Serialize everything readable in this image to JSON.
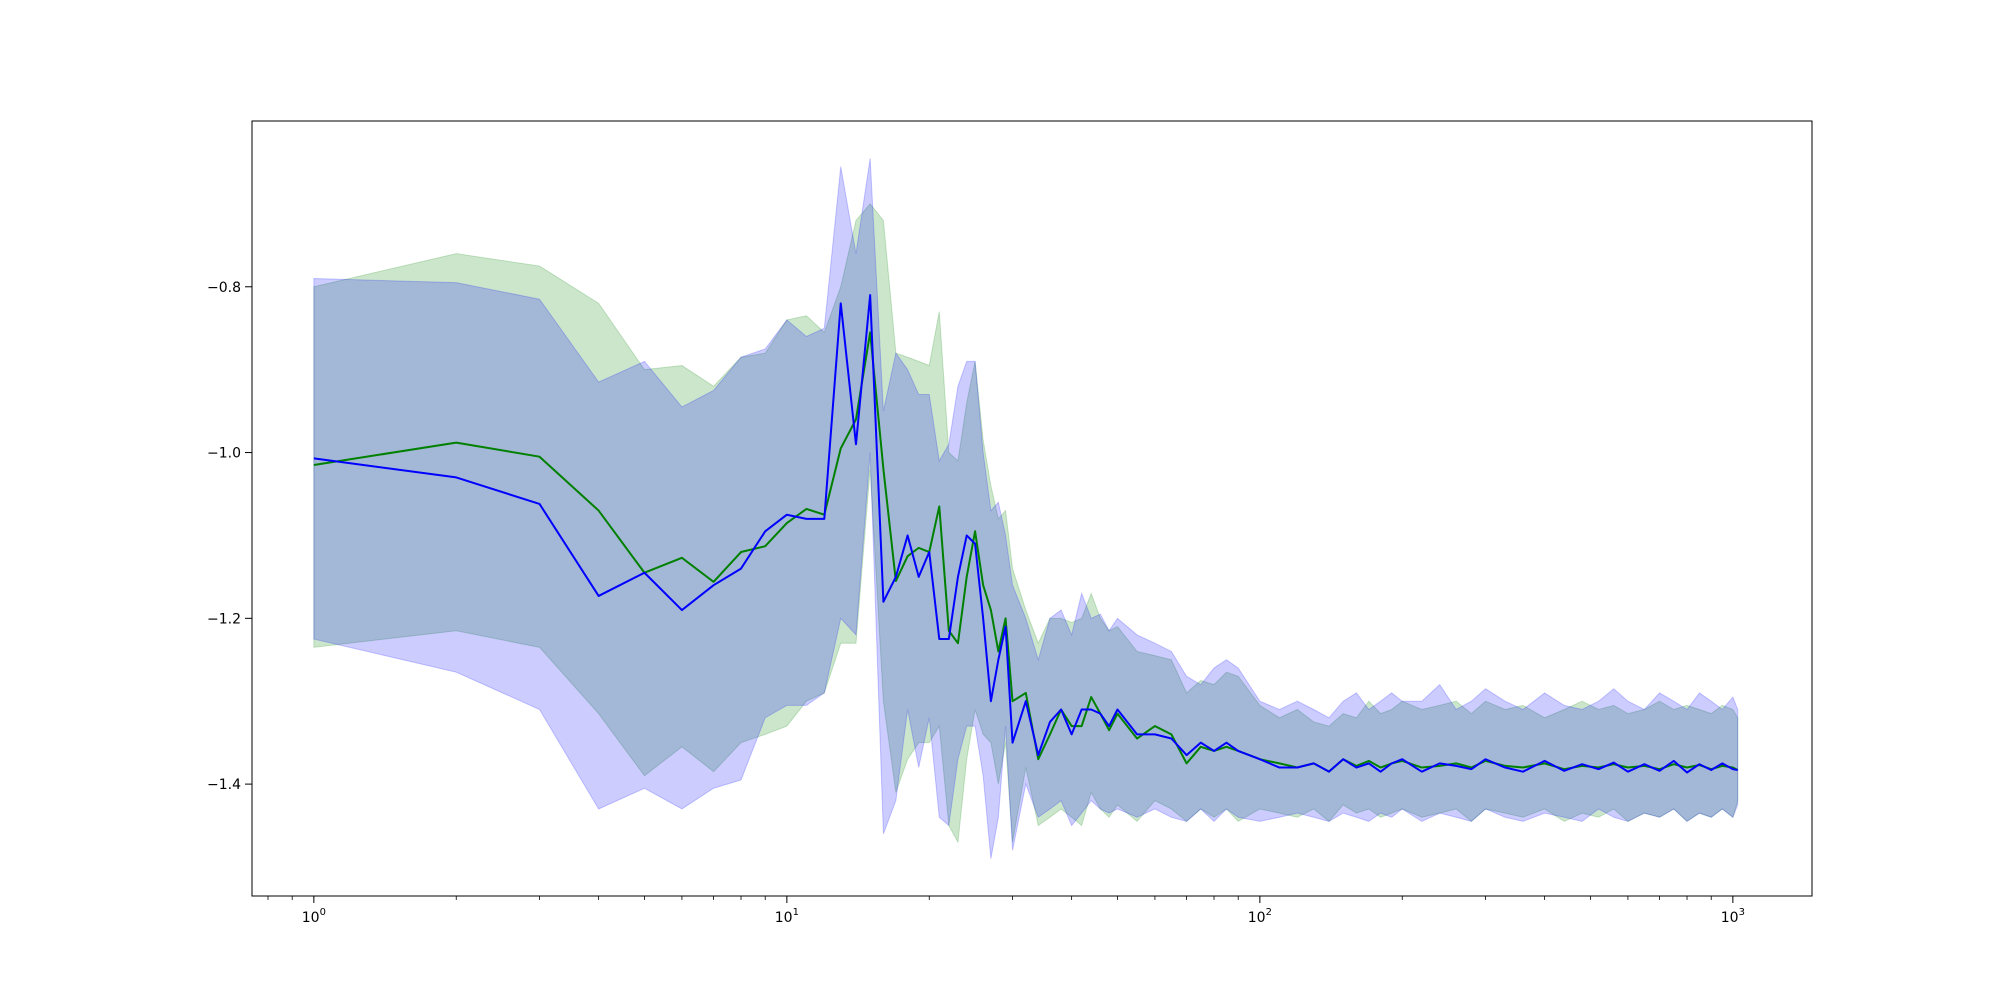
{
  "chart_data": {
    "type": "line",
    "title": "",
    "xlabel": "",
    "ylabel": "",
    "xscale": "log",
    "xlim": [
      0.74,
      1470
    ],
    "ylim": [
      -1.535,
      -0.6
    ],
    "grid": false,
    "legend": "none",
    "x_ticks": [
      {
        "value": 1,
        "base": "10",
        "exp": "0"
      },
      {
        "value": 10,
        "base": "10",
        "exp": "1"
      },
      {
        "value": 100,
        "base": "10",
        "exp": "2"
      },
      {
        "value": 1000,
        "base": "10",
        "exp": "3"
      }
    ],
    "y_ticks": [
      {
        "value": -0.8,
        "label": "−0.8"
      },
      {
        "value": -1.0,
        "label": "−1.0"
      },
      {
        "value": -1.2,
        "label": "−1.2"
      },
      {
        "value": -1.4,
        "label": "−1.4"
      }
    ],
    "series": [
      {
        "color": "#008000",
        "band_color": "#008000",
        "band_opacity": 0.2,
        "x": [
          1,
          2,
          3,
          4,
          5,
          6,
          7,
          8,
          9,
          10,
          11,
          12,
          13,
          14,
          15,
          16,
          17,
          18,
          19,
          20,
          21,
          22,
          23,
          24,
          25,
          26,
          27,
          28,
          29,
          30,
          32,
          34,
          36,
          38,
          40,
          42,
          44,
          46,
          48,
          50,
          55,
          60,
          65,
          70,
          75,
          80,
          85,
          90,
          100,
          110,
          120,
          130,
          140,
          150,
          160,
          170,
          180,
          190,
          200,
          220,
          240,
          260,
          280,
          300,
          330,
          360,
          400,
          440,
          480,
          520,
          560,
          600,
          650,
          700,
          750,
          800,
          850,
          900,
          950,
          1000,
          1024
        ],
        "mean": [
          -1.015,
          -0.988,
          -1.005,
          -1.07,
          -1.145,
          -1.127,
          -1.156,
          -1.12,
          -1.113,
          -1.085,
          -1.068,
          -1.075,
          -0.995,
          -0.96,
          -0.855,
          -1.02,
          -1.155,
          -1.125,
          -1.115,
          -1.12,
          -1.065,
          -1.215,
          -1.23,
          -1.15,
          -1.095,
          -1.16,
          -1.19,
          -1.24,
          -1.2,
          -1.3,
          -1.29,
          -1.37,
          -1.34,
          -1.31,
          -1.33,
          -1.33,
          -1.295,
          -1.315,
          -1.335,
          -1.315,
          -1.345,
          -1.33,
          -1.34,
          -1.375,
          -1.355,
          -1.36,
          -1.355,
          -1.36,
          -1.37,
          -1.375,
          -1.38,
          -1.375,
          -1.385,
          -1.37,
          -1.378,
          -1.372,
          -1.38,
          -1.375,
          -1.372,
          -1.38,
          -1.378,
          -1.375,
          -1.38,
          -1.372,
          -1.378,
          -1.38,
          -1.375,
          -1.382,
          -1.378,
          -1.38,
          -1.376,
          -1.38,
          -1.378,
          -1.382,
          -1.376,
          -1.38,
          -1.377,
          -1.382,
          -1.378,
          -1.38,
          -1.383
        ],
        "upper": [
          -0.8,
          -0.76,
          -0.775,
          -0.82,
          -0.9,
          -0.895,
          -0.92,
          -0.885,
          -0.88,
          -0.84,
          -0.835,
          -0.855,
          -0.8,
          -0.72,
          -0.7,
          -0.72,
          -0.88,
          -0.885,
          -0.89,
          -0.895,
          -0.83,
          -1.0,
          -1.01,
          -0.94,
          -0.89,
          -0.985,
          -1.04,
          -1.08,
          -1.07,
          -1.14,
          -1.19,
          -1.23,
          -1.2,
          -1.2,
          -1.205,
          -1.2,
          -1.17,
          -1.2,
          -1.215,
          -1.21,
          -1.24,
          -1.245,
          -1.25,
          -1.29,
          -1.275,
          -1.28,
          -1.265,
          -1.27,
          -1.305,
          -1.32,
          -1.31,
          -1.325,
          -1.33,
          -1.315,
          -1.32,
          -1.3,
          -1.315,
          -1.31,
          -1.3,
          -1.31,
          -1.305,
          -1.3,
          -1.315,
          -1.3,
          -1.31,
          -1.305,
          -1.32,
          -1.31,
          -1.3,
          -1.31,
          -1.305,
          -1.315,
          -1.31,
          -1.3,
          -1.31,
          -1.305,
          -1.31,
          -1.315,
          -1.305,
          -1.31,
          -1.32
        ],
        "lower": [
          -1.235,
          -1.215,
          -1.235,
          -1.315,
          -1.39,
          -1.355,
          -1.385,
          -1.35,
          -1.34,
          -1.33,
          -1.3,
          -1.29,
          -1.23,
          -1.23,
          -1.02,
          -1.3,
          -1.41,
          -1.37,
          -1.35,
          -1.35,
          -1.33,
          -1.45,
          -1.47,
          -1.37,
          -1.31,
          -1.34,
          -1.35,
          -1.4,
          -1.35,
          -1.47,
          -1.38,
          -1.45,
          -1.44,
          -1.43,
          -1.44,
          -1.45,
          -1.41,
          -1.43,
          -1.44,
          -1.425,
          -1.445,
          -1.42,
          -1.43,
          -1.445,
          -1.43,
          -1.44,
          -1.43,
          -1.445,
          -1.43,
          -1.435,
          -1.44,
          -1.43,
          -1.445,
          -1.425,
          -1.435,
          -1.43,
          -1.44,
          -1.435,
          -1.43,
          -1.44,
          -1.435,
          -1.43,
          -1.445,
          -1.43,
          -1.435,
          -1.44,
          -1.43,
          -1.445,
          -1.435,
          -1.44,
          -1.43,
          -1.445,
          -1.435,
          -1.44,
          -1.43,
          -1.445,
          -1.435,
          -1.44,
          -1.43,
          -1.44,
          -1.42
        ]
      },
      {
        "color": "#0000ff",
        "band_color": "#0000ff",
        "band_opacity": 0.2,
        "x": [
          1,
          2,
          3,
          4,
          5,
          6,
          7,
          8,
          9,
          10,
          11,
          12,
          13,
          14,
          15,
          16,
          17,
          18,
          19,
          20,
          21,
          22,
          23,
          24,
          25,
          26,
          27,
          28,
          29,
          30,
          32,
          34,
          36,
          38,
          40,
          42,
          44,
          46,
          48,
          50,
          55,
          60,
          65,
          70,
          75,
          80,
          85,
          90,
          100,
          110,
          120,
          130,
          140,
          150,
          160,
          170,
          180,
          190,
          200,
          220,
          240,
          260,
          280,
          300,
          330,
          360,
          400,
          440,
          480,
          520,
          560,
          600,
          650,
          700,
          750,
          800,
          850,
          900,
          950,
          1000,
          1024
        ],
        "mean": [
          -1.007,
          -1.03,
          -1.062,
          -1.173,
          -1.145,
          -1.19,
          -1.16,
          -1.14,
          -1.095,
          -1.075,
          -1.08,
          -1.08,
          -0.82,
          -0.99,
          -0.81,
          -1.18,
          -1.15,
          -1.1,
          -1.15,
          -1.12,
          -1.225,
          -1.225,
          -1.15,
          -1.1,
          -1.11,
          -1.2,
          -1.3,
          -1.25,
          -1.21,
          -1.35,
          -1.3,
          -1.365,
          -1.325,
          -1.31,
          -1.34,
          -1.31,
          -1.31,
          -1.315,
          -1.33,
          -1.31,
          -1.34,
          -1.34,
          -1.345,
          -1.365,
          -1.35,
          -1.36,
          -1.35,
          -1.36,
          -1.37,
          -1.38,
          -1.38,
          -1.375,
          -1.385,
          -1.37,
          -1.38,
          -1.375,
          -1.385,
          -1.375,
          -1.37,
          -1.385,
          -1.375,
          -1.378,
          -1.382,
          -1.37,
          -1.38,
          -1.385,
          -1.372,
          -1.384,
          -1.376,
          -1.382,
          -1.374,
          -1.385,
          -1.376,
          -1.384,
          -1.372,
          -1.386,
          -1.376,
          -1.383,
          -1.375,
          -1.382,
          -1.383
        ],
        "upper": [
          -0.79,
          -0.795,
          -0.815,
          -0.915,
          -0.89,
          -0.945,
          -0.925,
          -0.885,
          -0.875,
          -0.84,
          -0.86,
          -0.85,
          -0.655,
          -0.76,
          -0.645,
          -0.95,
          -0.88,
          -0.9,
          -0.93,
          -0.93,
          -1.01,
          -0.99,
          -0.92,
          -0.89,
          -0.89,
          -1.0,
          -1.07,
          -1.06,
          -1.1,
          -1.16,
          -1.2,
          -1.25,
          -1.2,
          -1.19,
          -1.22,
          -1.17,
          -1.2,
          -1.195,
          -1.215,
          -1.2,
          -1.22,
          -1.23,
          -1.24,
          -1.27,
          -1.28,
          -1.26,
          -1.25,
          -1.26,
          -1.3,
          -1.31,
          -1.3,
          -1.31,
          -1.32,
          -1.3,
          -1.29,
          -1.31,
          -1.3,
          -1.29,
          -1.3,
          -1.3,
          -1.28,
          -1.31,
          -1.3,
          -1.285,
          -1.3,
          -1.31,
          -1.29,
          -1.305,
          -1.31,
          -1.3,
          -1.285,
          -1.3,
          -1.31,
          -1.29,
          -1.3,
          -1.31,
          -1.29,
          -1.3,
          -1.31,
          -1.295,
          -1.31
        ],
        "lower": [
          -1.225,
          -1.265,
          -1.31,
          -1.43,
          -1.405,
          -1.43,
          -1.405,
          -1.395,
          -1.32,
          -1.305,
          -1.305,
          -1.29,
          -1.2,
          -1.22,
          -1.0,
          -1.46,
          -1.42,
          -1.31,
          -1.38,
          -1.32,
          -1.44,
          -1.45,
          -1.37,
          -1.33,
          -1.33,
          -1.39,
          -1.49,
          -1.44,
          -1.33,
          -1.48,
          -1.4,
          -1.44,
          -1.43,
          -1.42,
          -1.45,
          -1.435,
          -1.42,
          -1.43,
          -1.435,
          -1.43,
          -1.44,
          -1.43,
          -1.44,
          -1.445,
          -1.43,
          -1.445,
          -1.43,
          -1.44,
          -1.445,
          -1.44,
          -1.435,
          -1.44,
          -1.445,
          -1.435,
          -1.44,
          -1.445,
          -1.435,
          -1.44,
          -1.43,
          -1.445,
          -1.435,
          -1.44,
          -1.445,
          -1.43,
          -1.44,
          -1.445,
          -1.435,
          -1.44,
          -1.445,
          -1.43,
          -1.44,
          -1.445,
          -1.435,
          -1.44,
          -1.43,
          -1.445,
          -1.435,
          -1.44,
          -1.43,
          -1.44,
          -1.425
        ]
      }
    ]
  }
}
